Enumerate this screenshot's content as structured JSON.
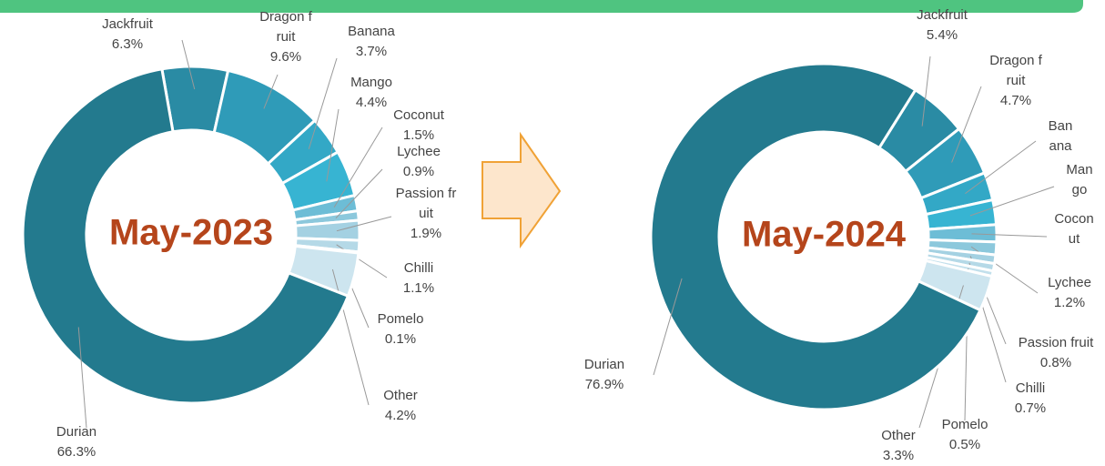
{
  "chart_data": [
    {
      "type": "pie",
      "title": "May-2023",
      "categories": [
        "Jackfruit",
        "Dragon fruit",
        "Banana",
        "Mango",
        "Coconut",
        "Lychee",
        "Passion fruit",
        "Chilli",
        "Pomelo",
        "Other",
        "Durian"
      ],
      "values": [
        6.3,
        9.6,
        3.7,
        4.4,
        1.5,
        0.9,
        1.9,
        1.1,
        0.1,
        4.2,
        66.3
      ],
      "value_labels": [
        "6.3%",
        "9.6%",
        "3.7%",
        "4.4%",
        "1.5%",
        "0.9%",
        "1.9%",
        "1.1%",
        "0.1%",
        "4.2%",
        "66.3%"
      ],
      "colors": [
        "#2a8ba4",
        "#2f9bb8",
        "#33a8c6",
        "#37b4d2",
        "#6dbdd6",
        "#8cc8dc",
        "#a4d1e2",
        "#b5d9e7",
        "#c2e0ec",
        "#cde5ef",
        "#237a8e"
      ]
    },
    {
      "type": "pie",
      "title": "May-2024",
      "categories": [
        "Jackfruit",
        "Dragon fruit",
        "Banana",
        "Mango",
        "Coconut",
        "Lychee",
        "Passion fruit",
        "Chilli",
        "Pomelo",
        "Other",
        "Durian"
      ],
      "values": [
        5.4,
        4.7,
        2.6,
        2.3,
        1.6,
        1.2,
        0.8,
        0.7,
        0.5,
        3.3,
        76.9
      ],
      "value_labels": [
        "5.4%",
        "4.7%",
        null,
        null,
        null,
        "1.2%",
        "0.8%",
        "0.7%",
        "0.5%",
        "3.3%",
        "76.9%"
      ],
      "colors": [
        "#2a8ba4",
        "#2f9bb8",
        "#33a8c6",
        "#37b4d2",
        "#6dbdd6",
        "#8cc8dc",
        "#a4d1e2",
        "#b5d9e7",
        "#c2e0ec",
        "#cde5ef",
        "#237a8e"
      ]
    }
  ]
}
